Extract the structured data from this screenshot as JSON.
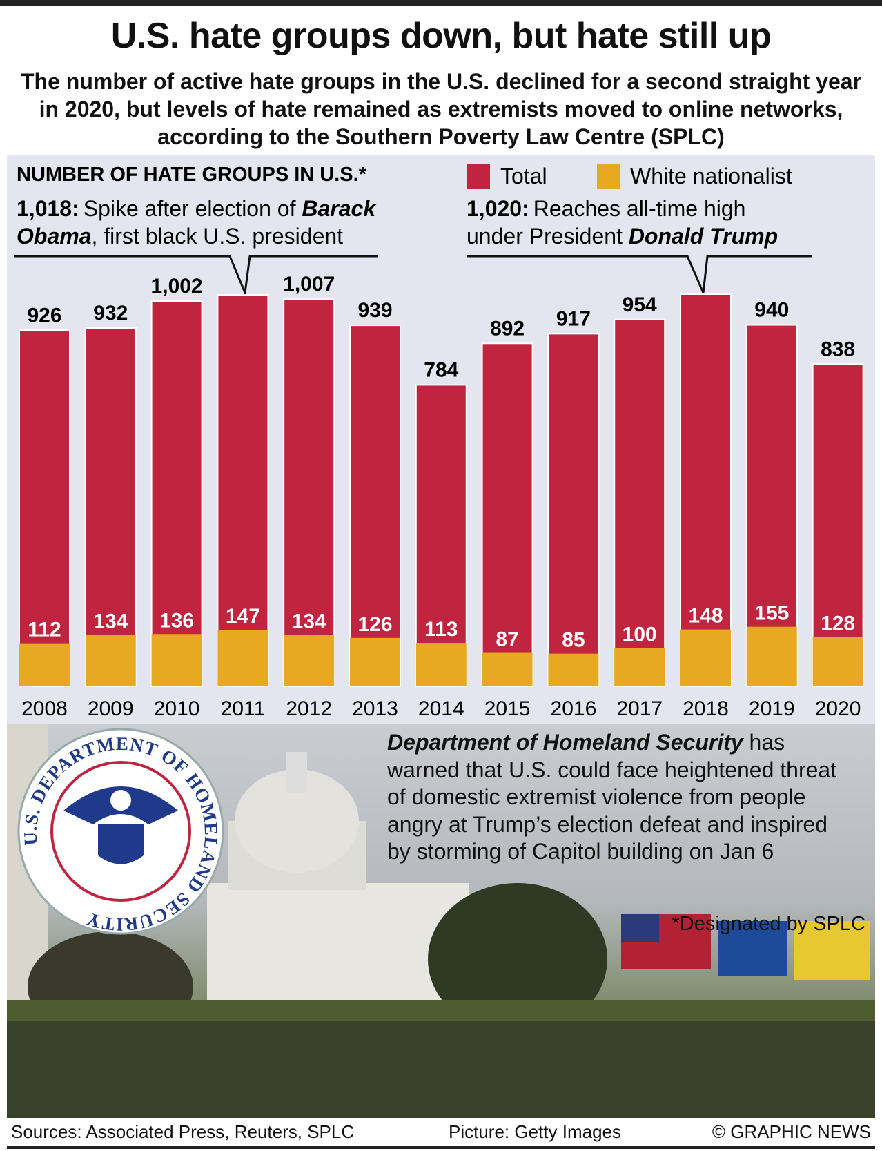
{
  "title": "U.S. hate groups down, but hate still up",
  "subtitle": "The number of active hate groups in the U.S. declined for a second straight year in 2020, but levels of hate remained as extremists moved to online networks, according to the Southern Poverty Law Centre (SPLC)",
  "colors": {
    "total": "#c0243f",
    "white_nationalist": "#e8a922",
    "panel": "#e3e5ef"
  },
  "chart_data": {
    "type": "bar",
    "title": "NUMBER OF HATE GROUPS IN U.S.*",
    "categories": [
      "2008",
      "2009",
      "2010",
      "2011",
      "2012",
      "2013",
      "2014",
      "2015",
      "2016",
      "2017",
      "2018",
      "2019",
      "2020"
    ],
    "series": [
      {
        "name": "Total",
        "values": [
          926,
          932,
          1002,
          1018,
          1007,
          939,
          784,
          892,
          917,
          954,
          1020,
          940,
          838
        ],
        "labels": [
          "926",
          "932",
          "1,002",
          "",
          "1,007",
          "939",
          "784",
          "892",
          "917",
          "954",
          "",
          "940",
          "838"
        ]
      },
      {
        "name": "White nationalist",
        "values": [
          112,
          134,
          136,
          147,
          134,
          126,
          113,
          87,
          85,
          100,
          148,
          155,
          128
        ]
      }
    ],
    "annotations": [
      {
        "year": "2011",
        "value_label": "1,018:",
        "text_1": "Spike after election of ",
        "text_bold": "Barack",
        "text_2_bold": "Obama",
        "text_2": ", first black U.S. president"
      },
      {
        "year": "2018",
        "value_label": "1,020:",
        "text_1": "Reaches all-time high",
        "text_2": "under President ",
        "text_2_bold": "Donald Trump"
      }
    ],
    "legend_position": "top-right",
    "ylim": [
      0,
      1020
    ]
  },
  "photo_caption": {
    "bold": "Department of Homeland Security",
    "text": " has warned that U.S. could face heightened threat of domestic extremist violence from people angry at Trump’s election defeat and inspired by storming of Capitol building on Jan 6"
  },
  "seal": {
    "text": "U.S. DEPARTMENT OF HOMELAND SECURITY"
  },
  "note": "*Designated by SPLC",
  "footer": {
    "sources": "Sources: Associated Press, Reuters, SPLC",
    "picture": "Picture: Getty Images",
    "credit": "© GRAPHIC NEWS"
  }
}
